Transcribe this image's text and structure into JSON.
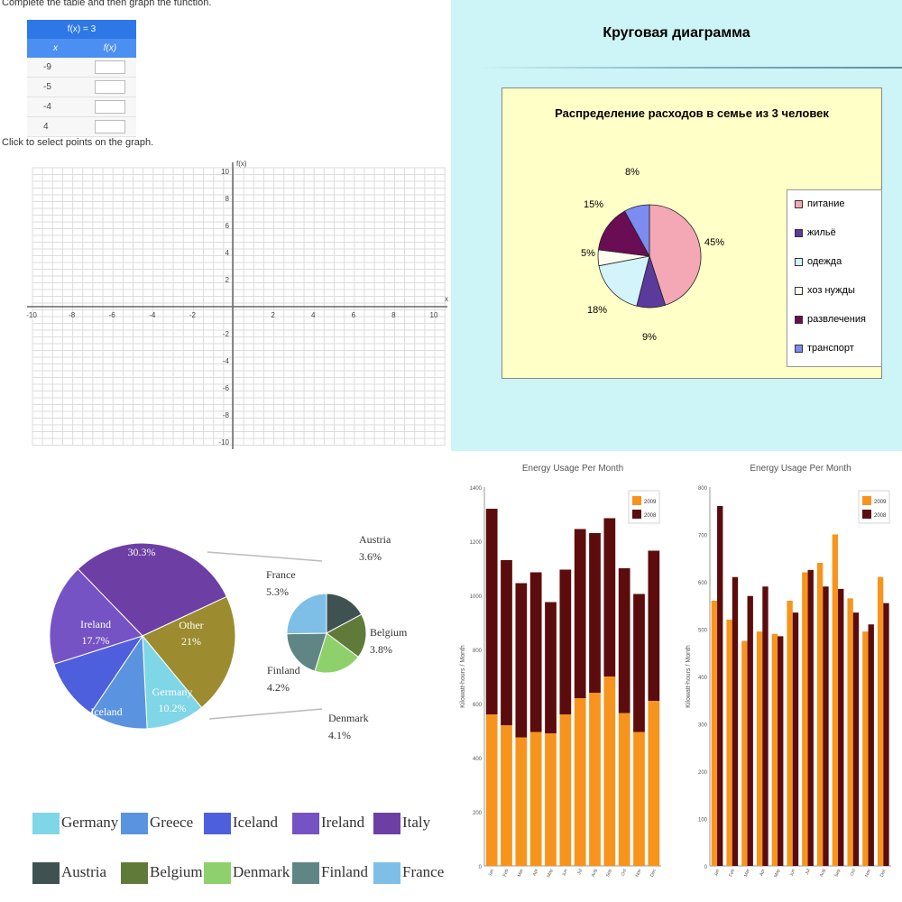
{
  "colors": {
    "grid": "#dddddd",
    "axis": "#666666",
    "table_header": "#2d78e6",
    "bar_2009": "#f7941d",
    "bar_2008": "#5c0c0c"
  },
  "function_panel": {
    "instruction": "Complete the table and then graph the function.",
    "table": {
      "function_label": "f(x) = 3",
      "col_x": "x",
      "col_fx": "f(x)",
      "rows": [
        {
          "x": "-9",
          "fx": ""
        },
        {
          "x": "-5",
          "fx": ""
        },
        {
          "x": "-4",
          "fx": ""
        },
        {
          "x": "4",
          "fx": ""
        }
      ]
    },
    "graph_instruction": "Click to select points on the graph.",
    "x_tick_labels": [
      "-10",
      "-8",
      "-6",
      "-4",
      "-2",
      "0",
      "2",
      "4",
      "6",
      "8",
      "10"
    ],
    "y_tick_labels": [
      "10",
      "8",
      "6",
      "4",
      "2",
      "-2",
      "-4",
      "-6",
      "-8",
      "-10"
    ],
    "y_axis_label": "f(x)",
    "x_axis_label": "x"
  },
  "chart_data": [
    {
      "type": "pie",
      "header": "Круговая диаграмма",
      "title": "Распределение расходов в семье из 3 человек",
      "slices": [
        {
          "label": "питание",
          "value": 45,
          "value_label": "45%",
          "color": "#f4a7b4"
        },
        {
          "label": "жильё",
          "value": 9,
          "value_label": "9%",
          "color": "#5b3a9b"
        },
        {
          "label": "одежда",
          "value": 18,
          "value_label": "18%",
          "color": "#d4f4fb"
        },
        {
          "label": "хоз нужды",
          "value": 5,
          "value_label": "5%",
          "color": "#fffff0"
        },
        {
          "label": "развлечения",
          "value": 15,
          "value_label": "15%",
          "color": "#6b0d55"
        },
        {
          "label": "транспорт",
          "value": 8,
          "value_label": "8%",
          "color": "#7d8cf0"
        }
      ],
      "legend": "right"
    },
    {
      "type": "pie",
      "slices": [
        {
          "label": "Italy",
          "value": 30.3,
          "value_label": "30.3%",
          "color": "#6d3fa5"
        },
        {
          "label": "Other",
          "value": 21,
          "value_label": "21%",
          "color": "#9c8c2f"
        },
        {
          "label": "Germany",
          "value": 10.2,
          "value_label": "10.2%",
          "color": "#7fd6e6"
        },
        {
          "label": "Greece",
          "value": 10.2,
          "value_label": "10.2%",
          "color": "#5a93df"
        },
        {
          "label": "Iceland",
          "value": 10.7,
          "value_label": "10.7%",
          "color": "#4e5fdd"
        },
        {
          "label": "Ireland",
          "value": 17.7,
          "value_label": "17.7%",
          "color": "#7553c4"
        }
      ],
      "sub_pie": [
        {
          "label": "France",
          "value": 5.3,
          "value_label": "5.3%",
          "color": "#7ebfe8"
        },
        {
          "label": "Austria",
          "value": 3.6,
          "value_label": "3.6%",
          "color": "#3f5251"
        },
        {
          "label": "Belgium",
          "value": 3.8,
          "value_label": "3.8%",
          "color": "#607a3a"
        },
        {
          "label": "Denmark",
          "value": 4.1,
          "value_label": "4.1%",
          "color": "#8ed16c"
        },
        {
          "label": "Finland",
          "value": 4.2,
          "value_label": "4.2%",
          "color": "#5f8585"
        }
      ],
      "legend_row1": [
        {
          "label": "Germany",
          "color": "#7fd6e6"
        },
        {
          "label": "Greece",
          "color": "#5a93df"
        },
        {
          "label": "Iceland",
          "color": "#4e5fdd"
        },
        {
          "label": "Ireland",
          "color": "#7553c4"
        },
        {
          "label": "Italy",
          "color": "#6d3fa5"
        }
      ],
      "legend_row2": [
        {
          "label": "Austria",
          "color": "#3f5251"
        },
        {
          "label": "Belgium",
          "color": "#607a3a"
        },
        {
          "label": "Denmark",
          "color": "#8ed16c"
        },
        {
          "label": "Finland",
          "color": "#5f8585"
        },
        {
          "label": "France",
          "color": "#7ebfe8"
        }
      ],
      "legend": "bottom"
    },
    {
      "type": "bar",
      "stacked": true,
      "title": "Energy Usage Per Month",
      "ylabel": "Kilowatt-hours / Month",
      "categories": [
        "Jan",
        "Feb",
        "Mar",
        "Apr",
        "May",
        "Jun",
        "Jul",
        "Aug",
        "Sep",
        "Oct",
        "Nov",
        "Dec"
      ],
      "series": [
        {
          "name": "2009",
          "values": [
            560,
            520,
            475,
            495,
            490,
            560,
            620,
            640,
            700,
            565,
            495,
            610
          ]
        },
        {
          "name": "2008",
          "values": [
            760,
            610,
            570,
            590,
            485,
            535,
            625,
            590,
            585,
            535,
            510,
            555
          ]
        }
      ],
      "ylim": [
        0,
        1400
      ],
      "yticks": [
        "0",
        "200",
        "400",
        "600",
        "800",
        "1000",
        "1200",
        "1400"
      ],
      "legend": "top-right"
    },
    {
      "type": "bar",
      "title": "Energy Usage Per Month",
      "ylabel": "Kilowatt-hours / Month",
      "categories": [
        "Jan",
        "Feb",
        "Mar",
        "Apr",
        "May",
        "Jun",
        "Jul",
        "Aug",
        "Sep",
        "Oct",
        "Nov",
        "Dec"
      ],
      "series": [
        {
          "name": "2009",
          "values": [
            560,
            520,
            475,
            495,
            490,
            560,
            620,
            640,
            700,
            565,
            495,
            610
          ]
        },
        {
          "name": "2008",
          "values": [
            760,
            610,
            570,
            590,
            485,
            535,
            625,
            590,
            585,
            535,
            510,
            555
          ]
        }
      ],
      "ylim": [
        0,
        800
      ],
      "yticks": [
        "0",
        "100",
        "200",
        "300",
        "400",
        "500",
        "600",
        "700",
        "800"
      ],
      "legend": "top-right"
    }
  ]
}
